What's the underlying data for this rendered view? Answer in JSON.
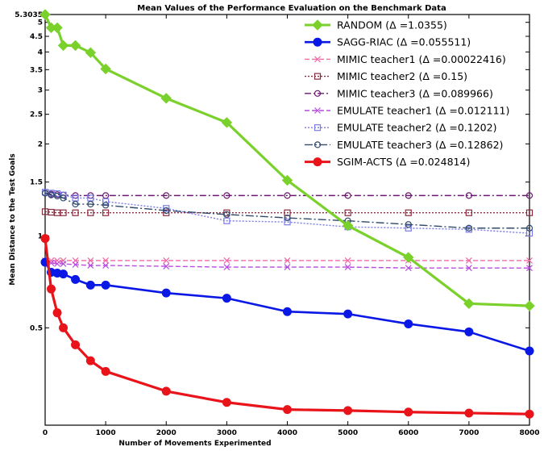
{
  "chart_data": {
    "type": "line",
    "title": "Mean Values of the  Performance Evaluation on the Benchmark Data",
    "xlabel": "Number of Movements Experimented",
    "ylabel": "Mean Distance to the Test Goals",
    "xlim": [
      0,
      8000
    ],
    "ylim": [
      0.24,
      5.3035
    ],
    "yscale": "log",
    "xticks": [
      0,
      1000,
      2000,
      3000,
      4000,
      5000,
      6000,
      7000,
      8000
    ],
    "yticks": [
      0.5,
      1,
      1.5,
      2,
      2.5,
      3,
      3.5,
      4,
      4.5,
      5,
      5.3035
    ],
    "ytick_labels": [
      "0.5",
      "1",
      "1.5",
      "2",
      "2.5",
      "3",
      "3.5",
      "4",
      "4.5",
      "5",
      "5.3035"
    ],
    "grid": false,
    "legend_position": "top-right",
    "series": [
      {
        "name": "RANDOM (Δ =1.0355)",
        "color": "#7ad12b",
        "marker": "diamond",
        "dash": "solid",
        "width": 3.2,
        "x": [
          0,
          100,
          200,
          300,
          500,
          750,
          1000,
          2000,
          3000,
          4000,
          5000,
          6000,
          7000,
          8000
        ],
        "y": [
          5.3035,
          4.8,
          4.8,
          4.2,
          4.2,
          3.98,
          3.52,
          2.82,
          2.35,
          1.52,
          1.08,
          0.85,
          0.6,
          0.59
        ]
      },
      {
        "name": "SAGG-RIAC (Δ =0.055511)",
        "color": "#0a18e6",
        "marker": "circle",
        "dash": "solid",
        "width": 2.6,
        "x": [
          0,
          100,
          200,
          300,
          500,
          750,
          1000,
          2000,
          3000,
          4000,
          5000,
          6000,
          7000,
          8000
        ],
        "y": [
          0.82,
          0.76,
          0.755,
          0.75,
          0.72,
          0.69,
          0.69,
          0.65,
          0.625,
          0.565,
          0.555,
          0.515,
          0.485,
          0.42
        ]
      },
      {
        "name": "MIMIC teacher1 (Δ =0.00022416)",
        "color": "#f06aa6",
        "marker": "x",
        "dash": "6,3",
        "width": 1.4,
        "x": [
          0,
          100,
          200,
          300,
          500,
          750,
          1000,
          2000,
          3000,
          4000,
          5000,
          6000,
          7000,
          8000
        ],
        "y": [
          0.83,
          0.83,
          0.83,
          0.83,
          0.83,
          0.83,
          0.83,
          0.83,
          0.83,
          0.83,
          0.83,
          0.83,
          0.83,
          0.83
        ]
      },
      {
        "name": "MIMIC teacher2 (Δ =0.15)",
        "color": "#8a2a3e",
        "marker": "square",
        "dash": "2,2",
        "width": 1.4,
        "x": [
          0,
          100,
          200,
          300,
          500,
          750,
          1000,
          2000,
          3000,
          4000,
          5000,
          6000,
          7000,
          8000
        ],
        "y": [
          1.2,
          1.195,
          1.19,
          1.19,
          1.19,
          1.19,
          1.19,
          1.19,
          1.19,
          1.19,
          1.19,
          1.19,
          1.19,
          1.19
        ]
      },
      {
        "name": "MIMIC teacher3 (Δ =0.089966)",
        "color": "#6a1a6e",
        "marker": "circle-open",
        "dash": "8,3,2,3",
        "width": 1.4,
        "x": [
          0,
          100,
          200,
          300,
          500,
          750,
          1000,
          2000,
          3000,
          4000,
          5000,
          6000,
          7000,
          8000
        ],
        "y": [
          1.38,
          1.37,
          1.365,
          1.36,
          1.355,
          1.355,
          1.355,
          1.355,
          1.355,
          1.355,
          1.355,
          1.355,
          1.355,
          1.355
        ]
      },
      {
        "name": "EMULATE teacher1 (Δ =0.012111)",
        "color": "#b84be0",
        "marker": "x",
        "dash": "6,3",
        "width": 1.4,
        "x": [
          0,
          100,
          200,
          300,
          500,
          750,
          1000,
          2000,
          3000,
          4000,
          5000,
          6000,
          7000,
          8000
        ],
        "y": [
          0.82,
          0.815,
          0.81,
          0.81,
          0.805,
          0.8,
          0.8,
          0.795,
          0.79,
          0.79,
          0.79,
          0.785,
          0.785,
          0.785
        ]
      },
      {
        "name": "EMULATE teacher2 (Δ =0.1202)",
        "color": "#7a7ae8",
        "marker": "square-open",
        "dash": "2,2",
        "width": 1.4,
        "x": [
          0,
          100,
          200,
          300,
          500,
          750,
          1000,
          2000,
          3000,
          4000,
          5000,
          6000,
          7000,
          8000
        ],
        "y": [
          1.39,
          1.38,
          1.375,
          1.36,
          1.33,
          1.33,
          1.295,
          1.23,
          1.12,
          1.11,
          1.07,
          1.06,
          1.05,
          1.02
        ]
      },
      {
        "name": "EMULATE teacher3 (Δ =0.12862)",
        "color": "#2f4a6a",
        "marker": "circle-open",
        "dash": "10,3,2,3",
        "width": 1.4,
        "x": [
          0,
          100,
          200,
          300,
          500,
          750,
          1000,
          2000,
          3000,
          4000,
          5000,
          6000,
          7000,
          8000
        ],
        "y": [
          1.38,
          1.36,
          1.35,
          1.33,
          1.27,
          1.27,
          1.26,
          1.21,
          1.175,
          1.145,
          1.12,
          1.09,
          1.06,
          1.06
        ]
      },
      {
        "name": "SGIM-ACTS (Δ =0.024814)",
        "color": "#e8141a",
        "marker": "circle",
        "dash": "solid",
        "width": 3.2,
        "x": [
          0,
          100,
          200,
          300,
          500,
          750,
          1000,
          2000,
          3000,
          4000,
          5000,
          6000,
          7000,
          8000
        ],
        "y": [
          0.98,
          0.67,
          0.56,
          0.5,
          0.44,
          0.39,
          0.36,
          0.31,
          0.285,
          0.27,
          0.268,
          0.265,
          0.263,
          0.261
        ]
      }
    ]
  }
}
